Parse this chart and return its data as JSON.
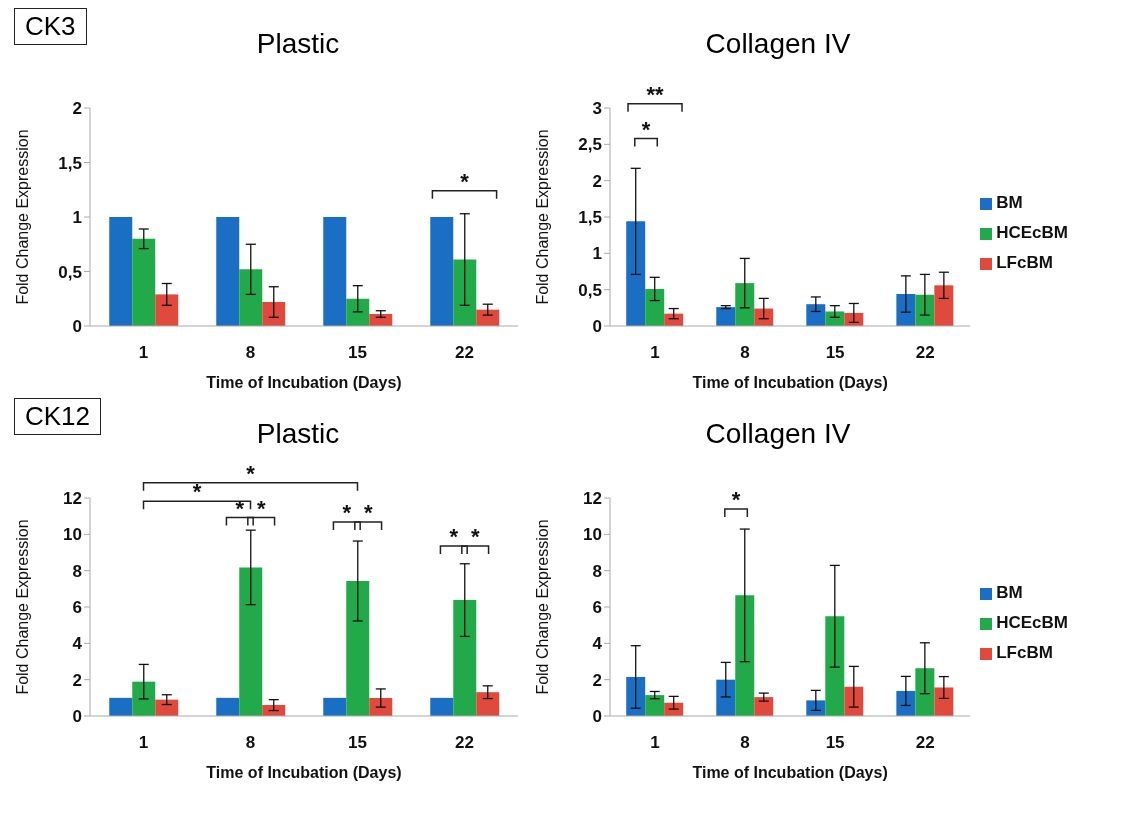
{
  "chart_data": [
    {
      "type": "bar",
      "title": "Plastic",
      "xlabel": "Time of Incubation (Days)",
      "ylabel": "Fold Change Expression",
      "categories": [
        "1",
        "8",
        "15",
        "22"
      ],
      "ylim": [
        0,
        2
      ],
      "yticks": [
        0,
        {
          "value": 0.5,
          "label": "0,5"
        },
        1,
        {
          "value": 1.5,
          "label": "1,5"
        },
        2
      ],
      "grid": false,
      "legend": false,
      "series": [
        {
          "color": "#1a6fc4",
          "values": [
            1,
            1,
            1,
            1
          ]
        },
        {
          "color": "#22a94a",
          "values": [
            0.8,
            0.52,
            0.25,
            0.61
          ],
          "errors": [
            0.09,
            0.23,
            0.12,
            0.42
          ]
        },
        {
          "color": "#e04a3c",
          "values": [
            0.29,
            0.22,
            0.11,
            0.15
          ],
          "errors": [
            0.1,
            0.14,
            0.03,
            0.05
          ]
        }
      ],
      "subtitle": "CK3",
      "annotations": [
        "*"
      ]
    },
    {
      "type": "bar",
      "title": "Collagen IV",
      "xlabel": "Time of Incubation (Days)",
      "ylabel": "Fold Change Expression",
      "categories": [
        "1",
        "8",
        "15",
        "22"
      ],
      "ylim": [
        0,
        3
      ],
      "yticks": [
        0,
        {
          "value": 0.5,
          "label": "0,5"
        },
        1,
        {
          "value": 1.5,
          "label": "1,5"
        },
        2,
        {
          "value": 2.5,
          "label": "2,5"
        },
        3
      ],
      "grid": false,
      "legend": "right",
      "series": [
        {
          "name": "BM",
          "color": "#1a6fc4",
          "values": [
            1.44,
            0.26,
            0.3,
            0.44
          ],
          "errors": [
            0.73,
            0.02,
            0.1,
            0.25
          ]
        },
        {
          "name": "HCEcBM",
          "color": "#22a94a",
          "values": [
            0.51,
            0.59,
            0.2,
            0.43
          ],
          "errors": [
            0.16,
            0.34,
            0.08,
            0.28
          ]
        },
        {
          "name": "LFcBM",
          "color": "#e04a3c",
          "values": [
            0.17,
            0.24,
            0.18,
            0.56
          ],
          "errors": [
            0.07,
            0.14,
            0.13,
            0.18
          ]
        }
      ],
      "annotations": [
        "**",
        "*"
      ]
    },
    {
      "type": "bar",
      "title": "Plastic",
      "xlabel": "Time of Incubation (Days)",
      "ylabel": "Fold Change Expression",
      "categories": [
        "1",
        "8",
        "15",
        "22"
      ],
      "ylim": [
        0,
        12
      ],
      "yticks": [
        0,
        2,
        4,
        6,
        8,
        10,
        12
      ],
      "grid": false,
      "legend": false,
      "series": [
        {
          "color": "#1a6fc4",
          "values": [
            1,
            1,
            1,
            1
          ]
        },
        {
          "color": "#22a94a",
          "values": [
            1.89,
            8.18,
            7.43,
            6.38
          ],
          "errors": [
            0.95,
            2.05,
            2.2,
            2.0
          ]
        },
        {
          "color": "#e04a3c",
          "values": [
            0.9,
            0.6,
            0.99,
            1.31
          ],
          "errors": [
            0.27,
            0.3,
            0.5,
            0.35
          ]
        }
      ],
      "subtitle": "CK12",
      "annotations": [
        "*",
        "*",
        "*",
        "*",
        "*",
        "*",
        "*",
        "*"
      ]
    },
    {
      "type": "bar",
      "title": "Collagen IV",
      "xlabel": "Time of Incubation (Days)",
      "ylabel": "Fold Change Expression",
      "categories": [
        "1",
        "8",
        "15",
        "22"
      ],
      "ylim": [
        0,
        12
      ],
      "yticks": [
        0,
        2,
        4,
        6,
        8,
        10,
        12
      ],
      "grid": false,
      "legend": "right",
      "series": [
        {
          "name": "BM",
          "color": "#1a6fc4",
          "values": [
            2.15,
            2.0,
            0.86,
            1.38
          ],
          "errors": [
            1.72,
            0.95,
            0.55,
            0.8
          ]
        },
        {
          "name": "HCEcBM",
          "color": "#22a94a",
          "values": [
            1.15,
            6.64,
            5.49,
            2.63
          ],
          "errors": [
            0.2,
            3.65,
            2.8,
            1.4
          ]
        },
        {
          "name": "LFcBM",
          "color": "#e04a3c",
          "values": [
            0.73,
            1.04,
            1.61,
            1.57
          ],
          "errors": [
            0.35,
            0.22,
            1.12,
            0.6
          ]
        }
      ],
      "annotations": [
        "*"
      ]
    }
  ]
}
